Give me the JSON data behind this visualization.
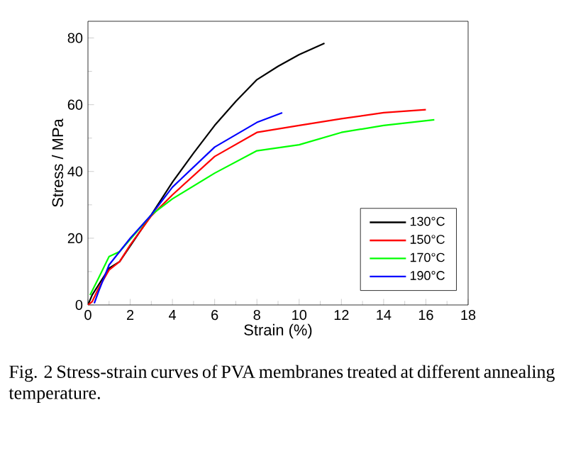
{
  "chart_data": {
    "type": "line",
    "xlabel": "Strain (%)",
    "ylabel": "Stress / MPa",
    "xlim": [
      0,
      18
    ],
    "ylim": [
      0,
      85
    ],
    "xticks": [
      0,
      2,
      4,
      6,
      8,
      10,
      12,
      14,
      16,
      18
    ],
    "yticks": [
      0,
      20,
      40,
      60,
      80
    ],
    "legend": "bottom right",
    "marker": "none",
    "line_style": "solid",
    "series": [
      {
        "name": "130°C",
        "color": "#000000",
        "x": [
          0,
          0.2,
          0.5,
          1,
          1.5,
          3,
          4,
          5,
          6,
          7,
          8,
          9,
          10,
          11.2
        ],
        "values": [
          0,
          3,
          6,
          11,
          13,
          27,
          36.8,
          45.5,
          53.8,
          61,
          67.5,
          71.5,
          75,
          78.4
        ]
      },
      {
        "name": "150°C",
        "color": "#ff0000",
        "x": [
          0,
          0.2,
          0.5,
          1,
          1.5,
          2,
          3,
          4,
          6,
          8,
          10,
          12,
          14,
          16
        ],
        "values": [
          0,
          1,
          5,
          10.5,
          13,
          18,
          26.7,
          33,
          44.5,
          51.7,
          53.8,
          55.8,
          57.6,
          58.5
        ]
      },
      {
        "name": "170°C",
        "color": "#00ff00",
        "x": [
          0.1,
          0.5,
          1,
          1.5,
          3,
          4,
          6,
          8,
          10,
          12,
          14,
          16.4
        ],
        "values": [
          3,
          8,
          14.5,
          16,
          27,
          31.8,
          39.5,
          46.2,
          48,
          51.7,
          53.8,
          55.5
        ]
      },
      {
        "name": "190°C",
        "color": "#0000ff",
        "x": [
          0.3,
          0.5,
          1,
          1.5,
          2,
          3,
          4,
          6,
          8,
          9.2
        ],
        "values": [
          0.5,
          4,
          12,
          16,
          20,
          27,
          35.3,
          47.3,
          54.7,
          57.6
        ]
      }
    ],
    "annotations": [
      "Fig. 2 Stress-strain curves of PVA membranes treated at different annealing temperature."
    ]
  }
}
